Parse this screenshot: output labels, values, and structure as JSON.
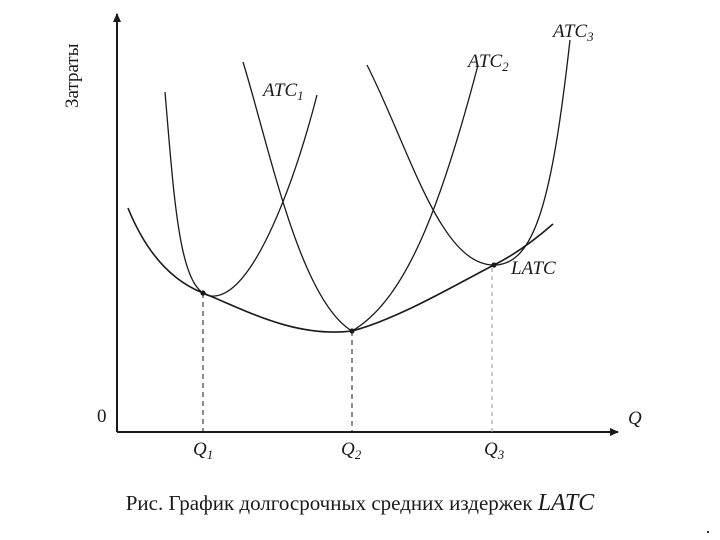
{
  "axes": {
    "y_label": "Затраты",
    "x_label": "Q",
    "origin_label": "0"
  },
  "curves": {
    "atc1": {
      "base": "ATC",
      "sub": "1"
    },
    "atc2": {
      "base": "ATC",
      "sub": "2"
    },
    "atc3": {
      "base": "ATC",
      "sub": "3"
    },
    "latc": "LATC"
  },
  "quantities": {
    "q1": {
      "base": "Q",
      "sub": "1"
    },
    "q2": {
      "base": "Q",
      "sub": "2"
    },
    "q3": {
      "base": "Q",
      "sub": "3"
    }
  },
  "caption": {
    "text": "Рис. График долгосрочных средних издержек ",
    "italic": "LATC"
  }
}
